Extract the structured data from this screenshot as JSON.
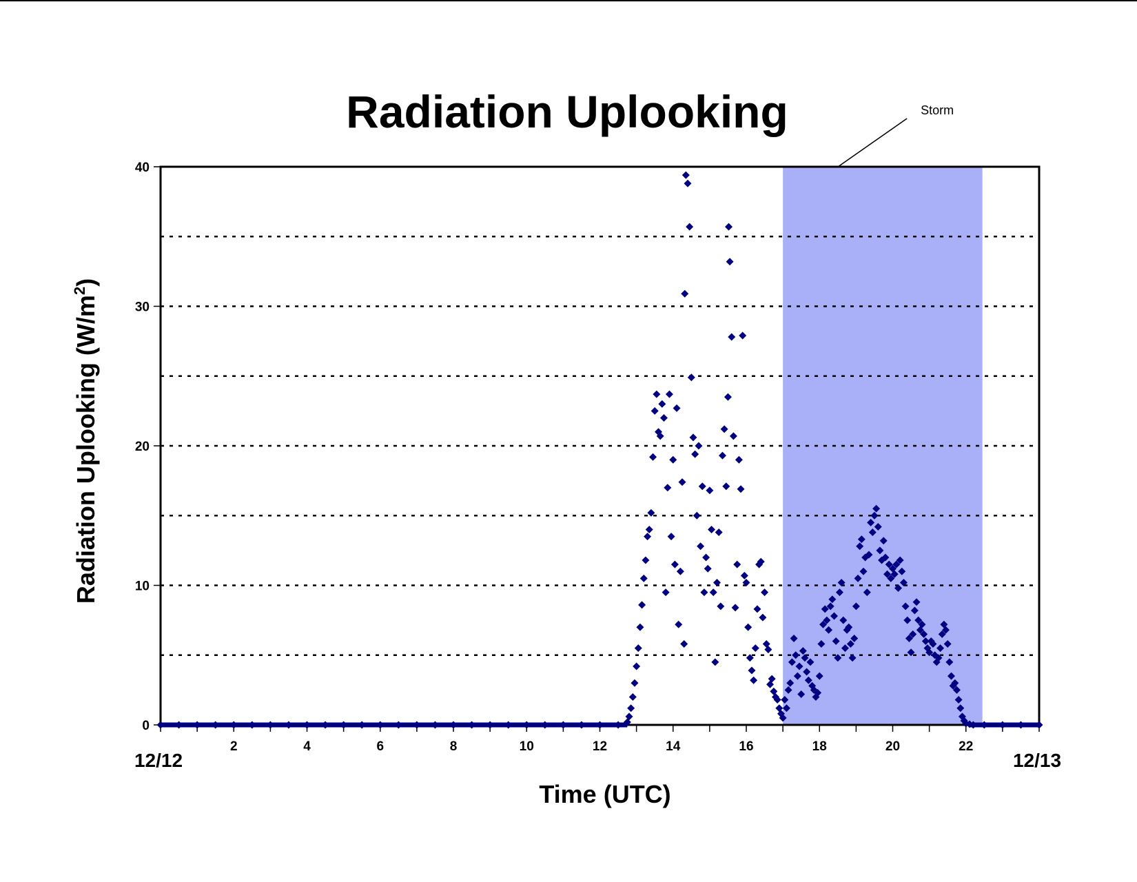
{
  "chart_data": {
    "type": "scatter",
    "title": "Radiation Uplooking",
    "xlabel": "Time (UTC)",
    "ylabel_main": "Radiation Uplooking (W/m",
    "ylabel_sup": "2",
    "ylabel_close": ")",
    "xlim": [
      0,
      24
    ],
    "ylim": [
      0,
      40
    ],
    "x_ticks": [
      2,
      4,
      6,
      8,
      10,
      12,
      14,
      16,
      18,
      20,
      22
    ],
    "x_tick_labels": [
      "2",
      "4",
      "6",
      "8",
      "10",
      "12",
      "14",
      "16",
      "18",
      "20",
      "22"
    ],
    "y_ticks": [
      0,
      10,
      20,
      30,
      40
    ],
    "y_tick_labels": [
      "0",
      "10",
      "20",
      "30",
      "40"
    ],
    "grid": "horizontal dotted every 5",
    "date_labels": {
      "start": "12/12",
      "end": "12/13"
    },
    "marker_color": "#000080",
    "storm_band": {
      "label": "Storm",
      "x_start": 17.0,
      "x_end": 22.45,
      "color": "#aab0f8"
    },
    "series": [
      {
        "marker": "diamond",
        "x": [
          0.0,
          0.5,
          1.0,
          1.5,
          2.0,
          2.5,
          3.0,
          3.5,
          4.0,
          4.5,
          5.0,
          5.5,
          6.0,
          6.5,
          7.0,
          7.5,
          8.0,
          8.5,
          9.0,
          9.5,
          10.0,
          10.5,
          11.0,
          11.5,
          12.0,
          12.5,
          12.75,
          12.8,
          12.85,
          12.9,
          12.95,
          13.0,
          13.05,
          13.1,
          13.15,
          13.2,
          13.25,
          13.3,
          13.35,
          13.4,
          13.45,
          13.5,
          13.55,
          13.6,
          13.65,
          13.7,
          13.75,
          13.8,
          13.85,
          13.9,
          13.95,
          14.0,
          14.05,
          14.1,
          14.15,
          14.2,
          14.25,
          14.3,
          14.32,
          14.35,
          14.4,
          14.45,
          14.5,
          14.55,
          14.6,
          14.65,
          14.7,
          14.75,
          14.8,
          14.85,
          14.9,
          14.95,
          15.0,
          15.05,
          15.1,
          15.15,
          15.2,
          15.25,
          15.3,
          15.35,
          15.4,
          15.45,
          15.5,
          15.52,
          15.55,
          15.6,
          15.65,
          15.7,
          15.75,
          15.8,
          15.85,
          15.9,
          15.95,
          16.0,
          16.05,
          16.1,
          16.15,
          16.2,
          16.25,
          16.3,
          16.35,
          16.4,
          16.45,
          16.5,
          16.55,
          16.6,
          16.65,
          16.7,
          16.75,
          16.8,
          16.85,
          16.9,
          16.95,
          17.0,
          17.05,
          17.1,
          17.15,
          17.2,
          17.25,
          17.3,
          17.35,
          17.4,
          17.45,
          17.5,
          17.55,
          17.6,
          17.65,
          17.7,
          17.75,
          17.8,
          17.85,
          17.9,
          17.95,
          18.0,
          18.05,
          18.1,
          18.15,
          18.2,
          18.25,
          18.3,
          18.35,
          18.4,
          18.45,
          18.5,
          18.55,
          18.6,
          18.65,
          18.7,
          18.75,
          18.8,
          18.85,
          18.9,
          18.95,
          19.0,
          19.05,
          19.1,
          19.15,
          19.2,
          19.25,
          19.3,
          19.35,
          19.4,
          19.45,
          19.5,
          19.55,
          19.6,
          19.65,
          19.7,
          19.75,
          19.8,
          19.85,
          19.9,
          19.95,
          20.0,
          20.05,
          20.1,
          20.15,
          20.2,
          20.25,
          20.3,
          20.35,
          20.4,
          20.45,
          20.5,
          20.55,
          20.6,
          20.65,
          20.7,
          20.75,
          20.8,
          20.85,
          20.9,
          20.95,
          21.0,
          21.05,
          21.1,
          21.15,
          21.2,
          21.25,
          21.3,
          21.35,
          21.4,
          21.45,
          21.5,
          21.55,
          21.6,
          21.65,
          21.7,
          21.75,
          21.8,
          21.85,
          21.9,
          21.95,
          22.0,
          22.1,
          22.2,
          22.5,
          23.0,
          23.5,
          24.0
        ],
        "y": [
          0,
          0,
          0,
          0,
          0,
          0,
          0,
          0,
          0,
          0,
          0,
          0,
          0,
          0,
          0,
          0,
          0,
          0,
          0,
          0,
          0,
          0,
          0,
          0,
          0,
          0,
          0.2,
          0.6,
          1.2,
          2.0,
          3.0,
          4.2,
          5.5,
          7.0,
          8.6,
          10.5,
          11.8,
          13.5,
          14.0,
          15.2,
          19.2,
          22.5,
          23.7,
          21.0,
          20.7,
          23.0,
          22.0,
          9.5,
          17.0,
          23.7,
          13.5,
          19.0,
          11.5,
          22.7,
          7.2,
          11.0,
          17.4,
          5.8,
          30.9,
          39.4,
          38.8,
          35.7,
          24.9,
          20.6,
          19.4,
          15.0,
          20.0,
          12.8,
          17.1,
          9.5,
          12.0,
          11.2,
          16.8,
          14.0,
          9.5,
          4.5,
          10.2,
          13.8,
          8.5,
          19.3,
          21.2,
          17.1,
          23.5,
          35.7,
          33.2,
          27.8,
          20.7,
          8.4,
          11.5,
          19.0,
          16.9,
          27.9,
          10.7,
          10.2,
          7.0,
          4.8,
          3.9,
          3.2,
          5.5,
          8.3,
          11.5,
          11.7,
          7.7,
          9.5,
          5.8,
          5.4,
          2.9,
          3.3,
          2.4,
          2.0,
          1.8,
          1.2,
          0.8,
          0.5,
          1.8,
          1.2,
          2.5,
          3.0,
          4.5,
          6.2,
          5.0,
          3.5,
          4.2,
          2.2,
          5.3,
          4.8,
          3.8,
          3.2,
          4.5,
          2.8,
          2.5,
          2.0,
          2.3,
          3.5,
          5.8,
          7.2,
          8.3,
          7.5,
          6.8,
          8.5,
          9.0,
          7.8,
          6.0,
          4.8,
          9.5,
          10.2,
          7.5,
          5.5,
          6.8,
          7.0,
          5.8,
          4.8,
          6.2,
          8.5,
          10.5,
          12.8,
          13.3,
          11.0,
          12.0,
          9.5,
          12.2,
          14.5,
          13.8,
          15.0,
          15.5,
          14.2,
          12.5,
          11.8,
          13.2,
          12.0,
          10.8,
          11.5,
          10.5,
          11.2,
          10.8,
          11.5,
          9.8,
          11.8,
          11.0,
          10.2,
          8.5,
          7.5,
          6.2,
          5.2,
          6.5,
          8.2,
          8.8,
          7.5,
          6.8,
          7.2,
          6.5,
          6.0,
          5.5,
          5.2,
          6.0,
          5.8,
          5.0,
          4.5,
          4.8,
          5.5,
          6.5,
          7.2,
          6.8,
          5.8,
          4.5,
          3.5,
          2.8,
          3.0,
          2.5,
          1.8,
          1.2,
          0.6,
          0.3,
          0.1,
          0.05,
          0,
          0,
          0,
          0,
          0
        ]
      }
    ]
  }
}
